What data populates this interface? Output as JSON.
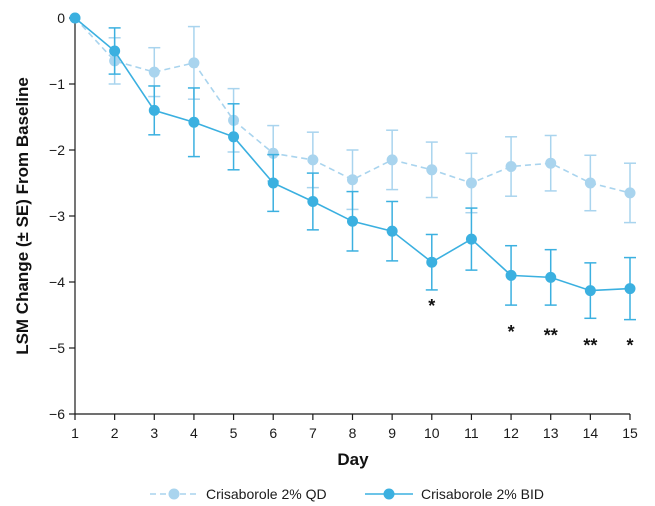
{
  "chart_data": {
    "type": "line",
    "xlabel": "Day",
    "ylabel": "LSM Change (± SE) From Baseline",
    "xlim": [
      1,
      15
    ],
    "ylim": [
      -6,
      0
    ],
    "x_ticks": [
      "1",
      "2",
      "3",
      "4",
      "5",
      "6",
      "7",
      "8",
      "9",
      "10",
      "11",
      "12",
      "13",
      "14",
      "15"
    ],
    "y_ticks": [
      "0",
      "−1",
      "−2",
      "−3",
      "−4",
      "−5",
      "−6"
    ],
    "grid": false,
    "legend_position": "bottom-center",
    "x": [
      1,
      2,
      3,
      4,
      5,
      6,
      7,
      8,
      9,
      10,
      11,
      12,
      13,
      14,
      15
    ],
    "series": [
      {
        "name": "Crisaborole 2% QD",
        "style": "dashed",
        "color": "#a9d4ee",
        "values": [
          0,
          -0.65,
          -0.82,
          -0.68,
          -1.55,
          -2.05,
          -2.15,
          -2.45,
          -2.15,
          -2.3,
          -2.5,
          -2.25,
          -2.2,
          -2.5,
          -2.65
        ],
        "se": [
          0,
          0.35,
          0.37,
          0.55,
          0.48,
          0.42,
          0.42,
          0.45,
          0.45,
          0.42,
          0.45,
          0.45,
          0.42,
          0.42,
          0.45
        ]
      },
      {
        "name": "Crisaborole 2% BID",
        "style": "solid",
        "color": "#3bb0e0",
        "values": [
          0,
          -0.5,
          -1.4,
          -1.58,
          -1.8,
          -2.5,
          -2.78,
          -3.08,
          -3.23,
          -3.7,
          -3.35,
          -3.9,
          -3.93,
          -4.13,
          -4.1
        ],
        "se": [
          0,
          0.35,
          0.37,
          0.52,
          0.5,
          0.43,
          0.43,
          0.45,
          0.45,
          0.42,
          0.47,
          0.45,
          0.42,
          0.42,
          0.47
        ]
      }
    ],
    "annotations": [
      {
        "x": 10,
        "y": -4.3,
        "text": "*"
      },
      {
        "x": 12,
        "y": -4.7,
        "text": "*"
      },
      {
        "x": 13,
        "y": -4.75,
        "text": "**"
      },
      {
        "x": 14,
        "y": -4.9,
        "text": "**"
      },
      {
        "x": 15,
        "y": -4.9,
        "text": "*"
      }
    ]
  }
}
